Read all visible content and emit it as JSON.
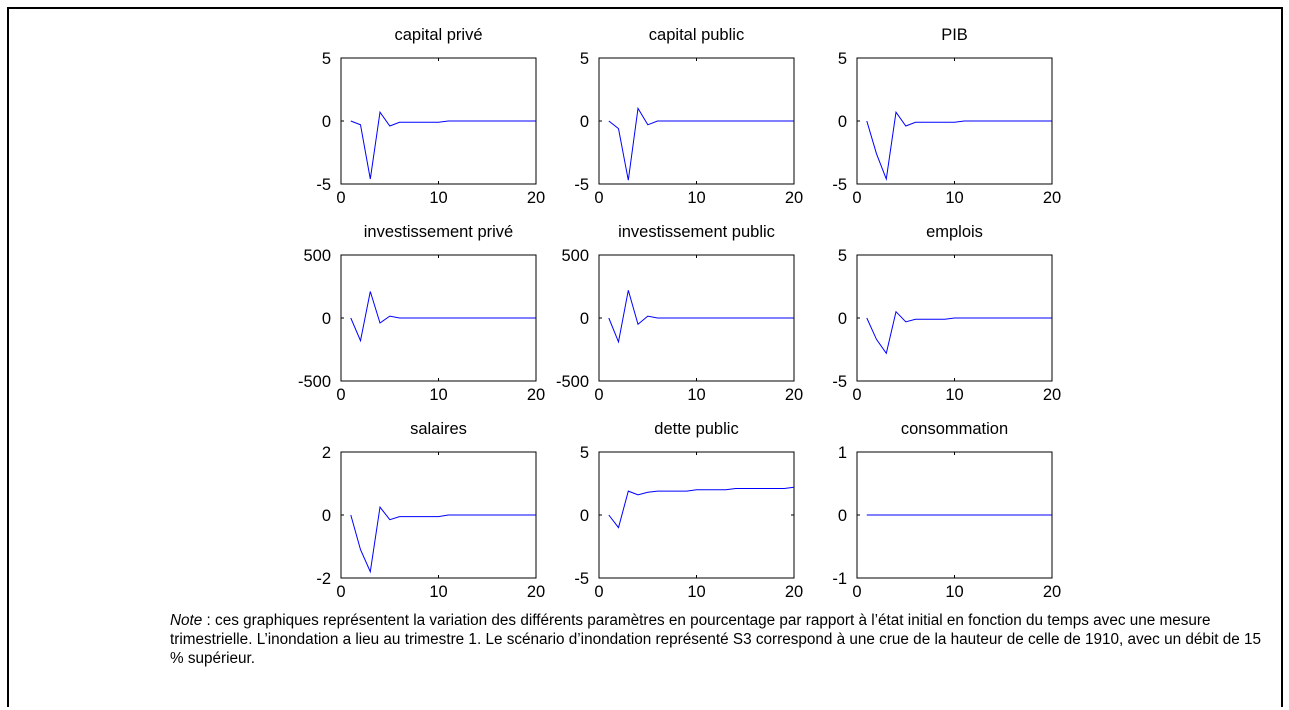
{
  "chart_data": [
    {
      "type": "line",
      "title": "capital privé",
      "ylim": [
        -5,
        5
      ],
      "yticks": [
        -5,
        0,
        5
      ],
      "xlim": [
        0,
        20
      ],
      "xticks": [
        0,
        10,
        20
      ],
      "x": [
        1,
        2,
        3,
        4,
        5,
        6,
        7,
        8,
        9,
        10,
        11,
        12,
        13,
        14,
        15,
        16,
        17,
        18,
        19,
        20
      ],
      "series": [
        {
          "color": "#0000ff",
          "values": [
            0,
            -0.3,
            -4.6,
            0.7,
            -0.4,
            -0.1,
            -0.1,
            -0.1,
            -0.1,
            -0.1,
            0,
            0,
            0,
            0,
            0,
            0,
            0,
            0,
            0,
            0
          ]
        }
      ]
    },
    {
      "type": "line",
      "title": "capital public",
      "ylim": [
        -5,
        5
      ],
      "yticks": [
        -5,
        0,
        5
      ],
      "xlim": [
        0,
        20
      ],
      "xticks": [
        0,
        10,
        20
      ],
      "x": [
        1,
        2,
        3,
        4,
        5,
        6,
        7,
        8,
        9,
        10,
        11,
        12,
        13,
        14,
        15,
        16,
        17,
        18,
        19,
        20
      ],
      "series": [
        {
          "color": "#0000ff",
          "values": [
            0,
            -0.6,
            -4.7,
            1,
            -0.3,
            0,
            0,
            0,
            0,
            0,
            0,
            0,
            0,
            0,
            0,
            0,
            0,
            0,
            0,
            0
          ]
        }
      ]
    },
    {
      "type": "line",
      "title": "PIB",
      "ylim": [
        -5,
        5
      ],
      "yticks": [
        -5,
        0,
        5
      ],
      "xlim": [
        0,
        20
      ],
      "xticks": [
        0,
        10,
        20
      ],
      "x": [
        1,
        2,
        3,
        4,
        5,
        6,
        7,
        8,
        9,
        10,
        11,
        12,
        13,
        14,
        15,
        16,
        17,
        18,
        19,
        20
      ],
      "series": [
        {
          "color": "#0000ff",
          "values": [
            0,
            -2.6,
            -4.6,
            0.7,
            -0.4,
            -0.1,
            -0.1,
            -0.1,
            -0.1,
            -0.1,
            0,
            0,
            0,
            0,
            0,
            0,
            0,
            0,
            0,
            0
          ]
        }
      ]
    },
    {
      "type": "line",
      "title": "investissement privé",
      "ylim": [
        -500,
        500
      ],
      "yticks": [
        -500,
        0,
        500
      ],
      "xlim": [
        0,
        20
      ],
      "xticks": [
        0,
        10,
        20
      ],
      "x": [
        1,
        2,
        3,
        4,
        5,
        6,
        7,
        8,
        9,
        10,
        11,
        12,
        13,
        14,
        15,
        16,
        17,
        18,
        19,
        20
      ],
      "series": [
        {
          "color": "#0000ff",
          "values": [
            0,
            -180,
            210,
            -40,
            15,
            0,
            0,
            0,
            0,
            0,
            0,
            0,
            0,
            0,
            0,
            0,
            0,
            0,
            0,
            0
          ]
        }
      ]
    },
    {
      "type": "line",
      "title": "investissement public",
      "ylim": [
        -500,
        500
      ],
      "yticks": [
        -500,
        0,
        500
      ],
      "xlim": [
        0,
        20
      ],
      "xticks": [
        0,
        10,
        20
      ],
      "x": [
        1,
        2,
        3,
        4,
        5,
        6,
        7,
        8,
        9,
        10,
        11,
        12,
        13,
        14,
        15,
        16,
        17,
        18,
        19,
        20
      ],
      "series": [
        {
          "color": "#0000ff",
          "values": [
            0,
            -190,
            220,
            -50,
            15,
            0,
            0,
            0,
            0,
            0,
            0,
            0,
            0,
            0,
            0,
            0,
            0,
            0,
            0,
            0
          ]
        }
      ]
    },
    {
      "type": "line",
      "title": "emplois",
      "ylim": [
        -5,
        5
      ],
      "yticks": [
        -5,
        0,
        5
      ],
      "xlim": [
        0,
        20
      ],
      "xticks": [
        0,
        10,
        20
      ],
      "x": [
        1,
        2,
        3,
        4,
        5,
        6,
        7,
        8,
        9,
        10,
        11,
        12,
        13,
        14,
        15,
        16,
        17,
        18,
        19,
        20
      ],
      "series": [
        {
          "color": "#0000ff",
          "values": [
            0,
            -1.7,
            -2.8,
            0.5,
            -0.3,
            -0.1,
            -0.1,
            -0.1,
            -0.1,
            0,
            0,
            0,
            0,
            0,
            0,
            0,
            0,
            0,
            0,
            0
          ]
        }
      ]
    },
    {
      "type": "line",
      "title": "salaires",
      "ylim": [
        -2,
        2
      ],
      "yticks": [
        -2,
        0,
        2
      ],
      "xlim": [
        0,
        20
      ],
      "xticks": [
        0,
        10,
        20
      ],
      "x": [
        1,
        2,
        3,
        4,
        5,
        6,
        7,
        8,
        9,
        10,
        11,
        12,
        13,
        14,
        15,
        16,
        17,
        18,
        19,
        20
      ],
      "series": [
        {
          "color": "#0000ff",
          "values": [
            0,
            -1.1,
            -1.8,
            0.25,
            -0.15,
            -0.05,
            -0.05,
            -0.05,
            -0.05,
            -0.05,
            0,
            0,
            0,
            0,
            0,
            0,
            0,
            0,
            0,
            0
          ]
        }
      ]
    },
    {
      "type": "line",
      "title": "dette public",
      "ylim": [
        -5,
        5
      ],
      "yticks": [
        -5,
        0,
        5
      ],
      "xlim": [
        0,
        20
      ],
      "xticks": [
        0,
        10,
        20
      ],
      "x": [
        1,
        2,
        3,
        4,
        5,
        6,
        7,
        8,
        9,
        10,
        11,
        12,
        13,
        14,
        15,
        16,
        17,
        18,
        19,
        20
      ],
      "series": [
        {
          "color": "#0000ff",
          "values": [
            0,
            -1,
            1.9,
            1.6,
            1.8,
            1.9,
            1.9,
            1.9,
            1.9,
            2,
            2,
            2,
            2,
            2.1,
            2.1,
            2.1,
            2.1,
            2.1,
            2.1,
            2.2
          ]
        }
      ]
    },
    {
      "type": "line",
      "title": "consommation",
      "ylim": [
        -1,
        1
      ],
      "yticks": [
        -1,
        0,
        1
      ],
      "xlim": [
        0,
        20
      ],
      "xticks": [
        0,
        10,
        20
      ],
      "x": [
        1,
        2,
        3,
        4,
        5,
        6,
        7,
        8,
        9,
        10,
        11,
        12,
        13,
        14,
        15,
        16,
        17,
        18,
        19,
        20
      ],
      "series": [
        {
          "color": "#0000ff",
          "values": [
            0,
            0,
            0,
            0,
            0,
            0,
            0,
            0,
            0,
            0,
            0,
            0,
            0,
            0,
            0,
            0,
            0,
            0,
            0,
            0
          ]
        }
      ]
    }
  ],
  "note": {
    "label": "Note",
    "text": " : ces graphiques représentent la variation des différents paramètres en pourcentage par rapport à l’état initial en fonction du temps avec une mesure trimestrielle. L’inondation a  lieu au trimestre 1. Le scénario d’inondation représenté S3 correspond à une crue de la hauteur de celle de 1910, avec un débit de 15 % supérieur."
  }
}
